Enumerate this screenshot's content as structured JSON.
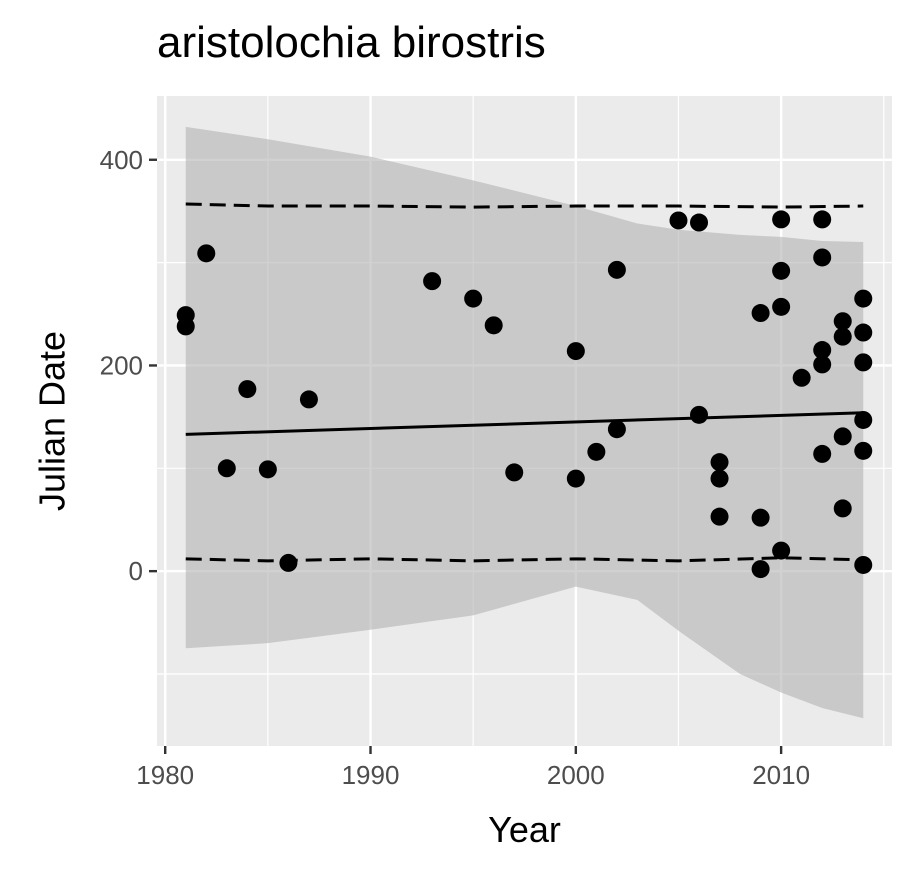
{
  "chart_data": {
    "type": "scatter",
    "title": "aristolochia birostris",
    "xlabel": "Year",
    "ylabel": "Julian Date",
    "xlim": [
      1979.6,
      2015.4
    ],
    "ylim": [
      -170,
      462
    ],
    "x_ticks": [
      1980,
      1990,
      2000,
      2010
    ],
    "y_ticks": [
      0,
      200,
      400
    ],
    "grid": true,
    "points": [
      [
        1981,
        249
      ],
      [
        1981,
        238
      ],
      [
        1982,
        309
      ],
      [
        1983,
        100
      ],
      [
        1984,
        177
      ],
      [
        1985,
        99
      ],
      [
        1986,
        8
      ],
      [
        1987,
        167
      ],
      [
        1993,
        282
      ],
      [
        1995,
        265
      ],
      [
        1996,
        239
      ],
      [
        1997,
        96
      ],
      [
        2000,
        214
      ],
      [
        2000,
        90
      ],
      [
        2001,
        116
      ],
      [
        2002,
        293
      ],
      [
        2002,
        138
      ],
      [
        2005,
        341
      ],
      [
        2006,
        339
      ],
      [
        2006,
        152
      ],
      [
        2007,
        106
      ],
      [
        2007,
        90
      ],
      [
        2007,
        53
      ],
      [
        2009,
        251
      ],
      [
        2009,
        52
      ],
      [
        2009,
        2
      ],
      [
        2010,
        342
      ],
      [
        2010,
        292
      ],
      [
        2010,
        257
      ],
      [
        2010,
        20
      ],
      [
        2011,
        188
      ],
      [
        2012,
        342
      ],
      [
        2012,
        305
      ],
      [
        2012,
        215
      ],
      [
        2012,
        201
      ],
      [
        2012,
        114
      ],
      [
        2013,
        243
      ],
      [
        2013,
        228
      ],
      [
        2013,
        131
      ],
      [
        2013,
        61
      ],
      [
        2014,
        265
      ],
      [
        2014,
        232
      ],
      [
        2014,
        203
      ],
      [
        2014,
        147
      ],
      [
        2014,
        117
      ],
      [
        2014,
        6
      ]
    ],
    "fit_line": {
      "x": [
        1981,
        2014
      ],
      "y": [
        133,
        154
      ]
    },
    "confidence_band": {
      "x": [
        1981,
        1985,
        1990,
        1995,
        2000,
        2003,
        2005,
        2008,
        2010,
        2012,
        2014
      ],
      "upper": [
        432,
        420,
        403,
        380,
        355,
        338,
        332,
        327,
        325,
        321,
        320
      ],
      "lower": [
        -75,
        -70,
        -57,
        -43,
        -15,
        -28,
        -58,
        -100,
        -118,
        -133,
        -143
      ]
    },
    "prediction_interval": {
      "x": [
        1981,
        1985,
        1990,
        1995,
        2000,
        2005,
        2010,
        2014
      ],
      "upper": [
        357,
        355,
        355,
        354,
        355,
        355,
        354,
        355
      ],
      "lower": [
        12,
        10,
        12,
        10,
        12,
        10,
        13,
        11
      ]
    }
  }
}
